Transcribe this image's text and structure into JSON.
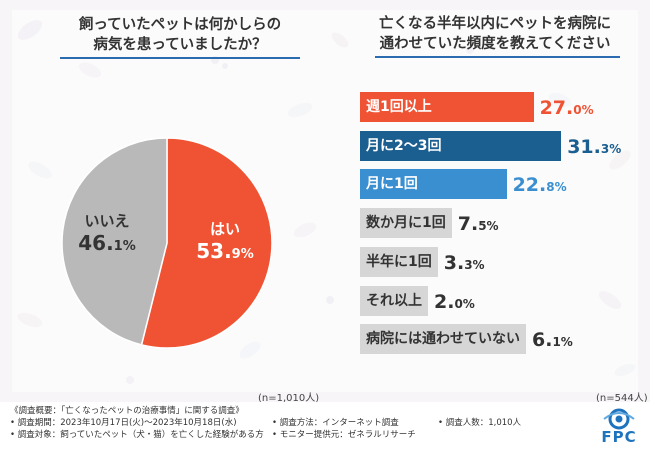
{
  "left_chart": {
    "title_lines": [
      "飼っていたペットは何かしらの",
      "病気を患っていましたか？"
    ],
    "sample": "(n=1,010人)"
  },
  "right_chart": {
    "title_lines": [
      "亡くなる半年以内にペットを病院に",
      "通わせていた頻度を教えてください"
    ],
    "sample": "(n=544人)"
  },
  "chart_data": [
    {
      "type": "pie",
      "title": "飼っていたペットは何かしらの病気を患っていましたか？",
      "categories": [
        "はい",
        "いいえ"
      ],
      "values": [
        53.9,
        46.1
      ],
      "value_labels": [
        [
          "53.",
          "9%"
        ],
        [
          "46.",
          "1%"
        ]
      ],
      "colors": [
        "#ef5334",
        "#b9b9b9"
      ],
      "start": "top, clockwise"
    },
    {
      "type": "bar",
      "orientation": "horizontal",
      "title": "亡くなる半年以内にペットを病院に通わせていた頻度を教えてください",
      "categories": [
        "週1回以上",
        "月に2〜3回",
        "月に1回",
        "数か月に1回",
        "半年に1回",
        "それ以上",
        "病院には通わせていない"
      ],
      "values": [
        27.0,
        31.3,
        22.8,
        7.5,
        3.3,
        2.0,
        6.1
      ],
      "value_labels": [
        [
          "27.",
          "0%"
        ],
        [
          "31.",
          "3%"
        ],
        [
          "22.",
          "8%"
        ],
        [
          "7.",
          "5%"
        ],
        [
          "3.",
          "3%"
        ],
        [
          "2.",
          "0%"
        ],
        [
          "6.",
          "1%"
        ]
      ],
      "colors": [
        "#ef5334",
        "#1b5e90",
        "#3a8fd0",
        "#d6d6d6",
        "#d6d6d6",
        "#d6d6d6",
        "#d6d6d6"
      ],
      "label_colors": [
        "#ffffff",
        "#ffffff",
        "#ffffff",
        "#333333",
        "#333333",
        "#333333",
        "#333333"
      ],
      "value_colors": [
        "#ef5334",
        "#1b5e90",
        "#3a8fd0",
        "#333333",
        "#333333",
        "#333333",
        "#333333"
      ],
      "xlim": [
        0,
        35
      ]
    }
  ],
  "footer": {
    "overview": "《調査概要：「亡くなったペットの治療事情」に関する調査》",
    "period": "• 調査期間：2023年10月17日(火)～2023年10月18日(水)",
    "target": "• 調査対象：飼っていたペット（犬・猫）を亡くした経験がある方",
    "method": "• 調査方法：インターネット調査",
    "provider": "• モニター提供元：ゼネラルリサーチ",
    "count": "• 調査人数：1,010人"
  },
  "logo": {
    "text": "FPC",
    "color": "#1e73be"
  }
}
